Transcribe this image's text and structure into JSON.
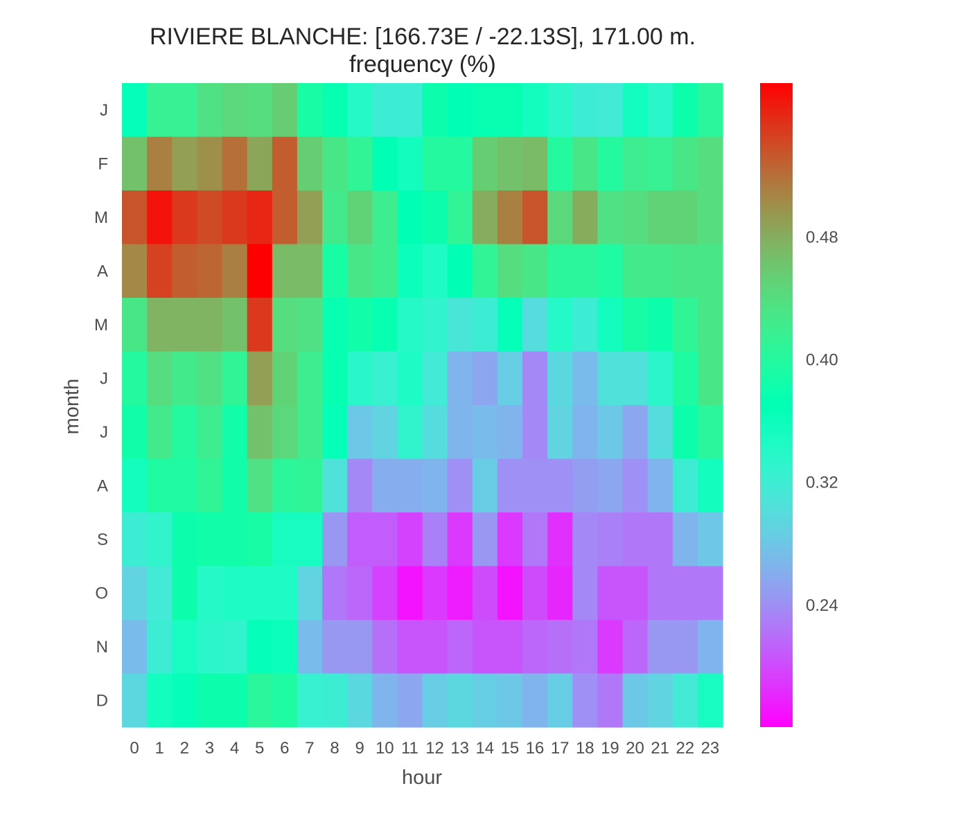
{
  "chart_data": {
    "type": "heatmap",
    "title": "RIVIERE BLANCHE: [166.73E / -22.13S], 171.00 m.",
    "subtitle": "frequency (%)",
    "xlabel": "hour",
    "ylabel": "month",
    "x_categories": [
      "0",
      "1",
      "2",
      "3",
      "4",
      "5",
      "6",
      "7",
      "8",
      "9",
      "10",
      "11",
      "12",
      "13",
      "14",
      "15",
      "16",
      "17",
      "18",
      "19",
      "20",
      "21",
      "22",
      "23"
    ],
    "y_categories": [
      "J",
      "F",
      "M",
      "A",
      "M",
      "J",
      "J",
      "A",
      "S",
      "O",
      "N",
      "D"
    ],
    "values": [
      [
        0.365,
        0.415,
        0.415,
        0.435,
        0.445,
        0.44,
        0.455,
        0.39,
        0.375,
        0.34,
        0.32,
        0.32,
        0.38,
        0.37,
        0.375,
        0.375,
        0.355,
        0.335,
        0.32,
        0.315,
        0.355,
        0.335,
        0.38,
        0.405
      ],
      [
        0.465,
        0.51,
        0.49,
        0.5,
        0.52,
        0.485,
        0.53,
        0.455,
        0.43,
        0.41,
        0.37,
        0.355,
        0.4,
        0.4,
        0.455,
        0.465,
        0.47,
        0.4,
        0.43,
        0.4,
        0.42,
        0.415,
        0.43,
        0.44
      ],
      [
        0.535,
        0.57,
        0.55,
        0.54,
        0.55,
        0.56,
        0.53,
        0.49,
        0.425,
        0.45,
        0.42,
        0.37,
        0.38,
        0.41,
        0.48,
        0.51,
        0.535,
        0.445,
        0.48,
        0.435,
        0.44,
        0.45,
        0.45,
        0.44
      ],
      [
        0.505,
        0.545,
        0.53,
        0.525,
        0.51,
        0.58,
        0.47,
        0.47,
        0.39,
        0.43,
        0.42,
        0.36,
        0.345,
        0.37,
        0.41,
        0.44,
        0.43,
        0.405,
        0.405,
        0.395,
        0.425,
        0.425,
        0.43,
        0.43
      ],
      [
        0.43,
        0.475,
        0.475,
        0.475,
        0.465,
        0.55,
        0.44,
        0.435,
        0.375,
        0.385,
        0.375,
        0.34,
        0.33,
        0.31,
        0.32,
        0.365,
        0.3,
        0.34,
        0.32,
        0.355,
        0.39,
        0.38,
        0.41,
        0.43
      ],
      [
        0.4,
        0.44,
        0.425,
        0.435,
        0.41,
        0.49,
        0.45,
        0.42,
        0.375,
        0.335,
        0.325,
        0.345,
        0.315,
        0.265,
        0.255,
        0.285,
        0.235,
        0.295,
        0.27,
        0.305,
        0.305,
        0.335,
        0.395,
        0.43
      ],
      [
        0.385,
        0.425,
        0.4,
        0.42,
        0.385,
        0.465,
        0.445,
        0.42,
        0.365,
        0.28,
        0.29,
        0.33,
        0.3,
        0.265,
        0.27,
        0.265,
        0.235,
        0.29,
        0.265,
        0.28,
        0.255,
        0.3,
        0.38,
        0.405
      ],
      [
        0.355,
        0.395,
        0.395,
        0.41,
        0.385,
        0.435,
        0.405,
        0.41,
        0.305,
        0.235,
        0.26,
        0.26,
        0.265,
        0.24,
        0.285,
        0.24,
        0.24,
        0.24,
        0.25,
        0.255,
        0.24,
        0.265,
        0.32,
        0.355
      ],
      [
        0.32,
        0.33,
        0.38,
        0.385,
        0.385,
        0.39,
        0.35,
        0.35,
        0.245,
        0.21,
        0.21,
        0.195,
        0.23,
        0.19,
        0.245,
        0.19,
        0.225,
        0.185,
        0.235,
        0.23,
        0.225,
        0.225,
        0.265,
        0.28
      ],
      [
        0.29,
        0.315,
        0.38,
        0.34,
        0.345,
        0.345,
        0.345,
        0.29,
        0.225,
        0.215,
        0.195,
        0.17,
        0.19,
        0.175,
        0.2,
        0.17,
        0.2,
        0.18,
        0.235,
        0.205,
        0.205,
        0.225,
        0.225,
        0.225
      ],
      [
        0.27,
        0.32,
        0.35,
        0.335,
        0.33,
        0.365,
        0.36,
        0.27,
        0.245,
        0.245,
        0.22,
        0.205,
        0.205,
        0.215,
        0.205,
        0.205,
        0.215,
        0.22,
        0.225,
        0.19,
        0.215,
        0.245,
        0.245,
        0.265
      ],
      [
        0.295,
        0.355,
        0.365,
        0.38,
        0.38,
        0.405,
        0.395,
        0.325,
        0.32,
        0.295,
        0.265,
        0.255,
        0.285,
        0.295,
        0.285,
        0.28,
        0.265,
        0.285,
        0.24,
        0.225,
        0.28,
        0.29,
        0.315,
        0.35
      ]
    ],
    "colorscale": "rainbow",
    "vmin": 0.16,
    "vmax": 0.58,
    "colorbar_ticks": [
      "0.24",
      "0.32",
      "0.40",
      "0.48"
    ],
    "grid": false
  }
}
